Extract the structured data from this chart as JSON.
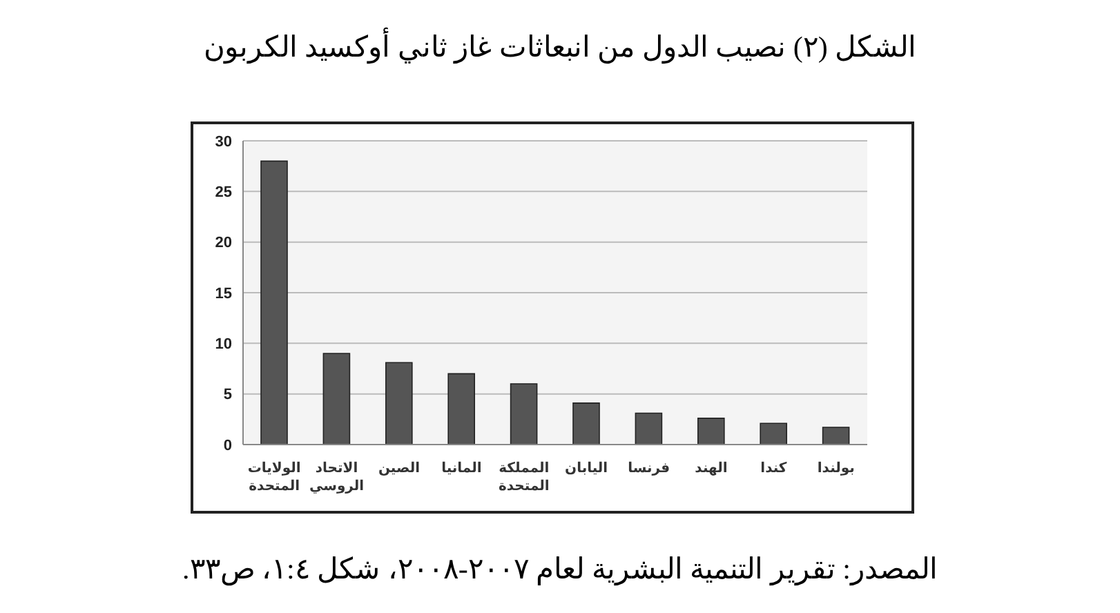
{
  "chart_data": {
    "type": "bar",
    "title": "الشكل (٢) نصيب الدول من انبعاثات غاز ثاني أوكسيد الكربون",
    "categories": [
      "الولايات المتحدة",
      "الاتحاد الروسي",
      "الصين",
      "المانيا",
      "المملكة المتحدة",
      "اليابان",
      "فرنسا",
      "الهند",
      "كندا",
      "بولندا"
    ],
    "values": [
      28,
      9,
      8.1,
      7,
      6,
      4.1,
      3.1,
      2.6,
      2.1,
      1.7
    ],
    "color": "#555555",
    "ylim": [
      0,
      30
    ],
    "yticks": [
      0,
      5,
      10,
      15,
      20,
      25,
      30
    ],
    "grid": "y",
    "annotations": [
      "المصدر: تقرير التنمية البشرية لعام ٢٠٠٧-٢٠٠٨، شكل ١:٤، ص٣٣."
    ]
  }
}
